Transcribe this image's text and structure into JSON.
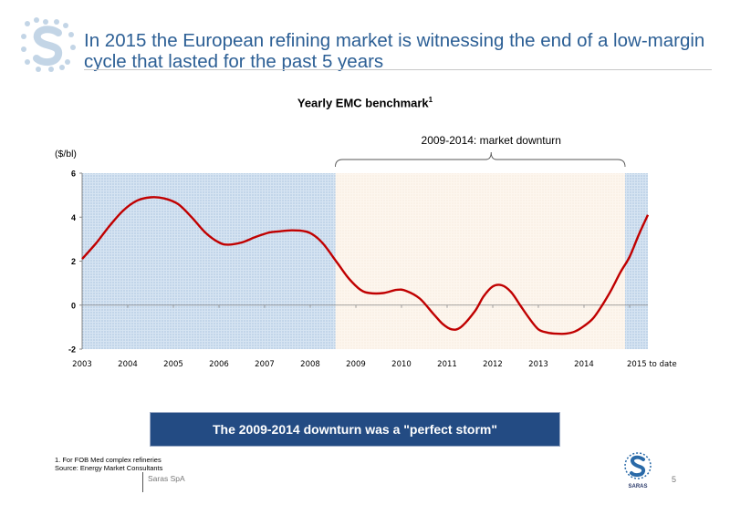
{
  "header": {
    "title": "In 2015 the European refining market is witnessing the end of a low-margin cycle that lasted for the past 5 years"
  },
  "logo": {
    "icon": "saras-logo-icon",
    "brand_text": "SARAS"
  },
  "chart_data": {
    "type": "line",
    "title": "Yearly EMC benchmark",
    "title_superscript": "1",
    "ylabel": "($/bl)",
    "xlabel": "",
    "ylim": [
      -2,
      6
    ],
    "yticks": [
      "-2",
      "0",
      "2",
      "4",
      "6"
    ],
    "categories": [
      "2003",
      "2004",
      "2005",
      "2006",
      "2007",
      "2008",
      "2009",
      "2010",
      "2011",
      "2012",
      "2013",
      "2014",
      "2015 to date"
    ],
    "annotation": "2009-2014: market downturn",
    "series": [
      {
        "color": "#c00000",
        "x": [
          2003.0,
          2003.3,
          2003.6,
          2003.9,
          2004.2,
          2004.5,
          2004.8,
          2005.1,
          2005.4,
          2005.7,
          2006.0,
          2006.2,
          2006.5,
          2006.8,
          2007.1,
          2007.3,
          2007.6,
          2007.9,
          2008.1,
          2008.3,
          2008.6,
          2008.85,
          2009.1,
          2009.3,
          2009.6,
          2009.9,
          2010.1,
          2010.4,
          2010.7,
          2010.9,
          2011.1,
          2011.3,
          2011.6,
          2011.8,
          2012.0,
          2012.2,
          2012.4,
          2012.6,
          2012.8,
          2013.0,
          2013.2,
          2013.4,
          2013.6,
          2013.8,
          2014.0,
          2014.2,
          2014.4,
          2014.6,
          2014.8,
          2015.0,
          2015.2,
          2015.4
        ],
        "y": [
          2.1,
          2.8,
          3.6,
          4.3,
          4.75,
          4.9,
          4.85,
          4.6,
          4.0,
          3.3,
          2.85,
          2.75,
          2.85,
          3.1,
          3.3,
          3.35,
          3.4,
          3.35,
          3.15,
          2.75,
          1.9,
          1.2,
          0.7,
          0.55,
          0.55,
          0.7,
          0.65,
          0.3,
          -0.4,
          -0.85,
          -1.1,
          -1.0,
          -0.3,
          0.4,
          0.85,
          0.9,
          0.6,
          0.0,
          -0.6,
          -1.1,
          -1.25,
          -1.3,
          -1.3,
          -1.2,
          -0.95,
          -0.6,
          0.0,
          0.7,
          1.5,
          2.2,
          3.2,
          4.1
        ]
      }
    ],
    "shaded_periods": [
      {
        "from": 2003.0,
        "to": 2008.55,
        "color": "#cfe0f2"
      },
      {
        "from": 2008.55,
        "to": 2014.9,
        "color": "#fbf3ea"
      },
      {
        "from": 2014.9,
        "to": 2015.4,
        "color": "#cfe0f2"
      }
    ],
    "grid": false,
    "legend": "none"
  },
  "banner": {
    "text": "The 2009-2014 downturn was a \"perfect storm\""
  },
  "footer": {
    "note1": "1. For FOB Med complex refineries",
    "note2": "Source: Energy Market Consultants",
    "company": "Saras SpA",
    "page": "5"
  }
}
